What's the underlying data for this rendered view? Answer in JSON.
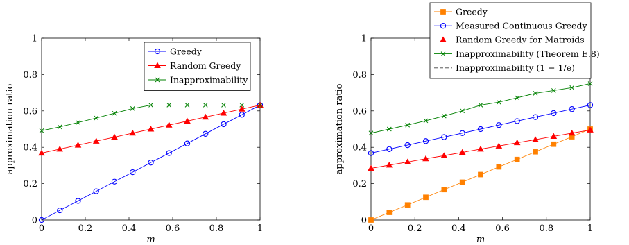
{
  "chart_data": [
    {
      "type": "line",
      "xlabel": "m",
      "ylabel": "approximation ratio",
      "xlim": [
        0,
        1
      ],
      "ylim": [
        0,
        1
      ],
      "xticks": [
        "0",
        "0.2",
        "0.4",
        "0.6",
        "0.8",
        "1"
      ],
      "yticks": [
        "0",
        "0.2",
        "0.4",
        "0.6",
        "0.8",
        "1"
      ],
      "grid": false,
      "legend_position": "top-right",
      "series": [
        {
          "name": "Greedy",
          "color": "#0000ff",
          "marker": "circle",
          "x": [
            0,
            0.0833,
            0.1667,
            0.25,
            0.3333,
            0.4167,
            0.5,
            0.5833,
            0.6667,
            0.75,
            0.8333,
            0.9167,
            1
          ],
          "y": [
            0,
            0.053,
            0.105,
            0.158,
            0.211,
            0.263,
            0.316,
            0.368,
            0.421,
            0.474,
            0.527,
            0.579,
            0.632
          ]
        },
        {
          "name": "Random Greedy",
          "color": "#ff0000",
          "marker": "triangle",
          "x": [
            0,
            0.0833,
            0.1667,
            0.25,
            0.3333,
            0.4167,
            0.5,
            0.5833,
            0.6667,
            0.75,
            0.8333,
            0.9167,
            1
          ],
          "y": [
            0.368,
            0.39,
            0.412,
            0.434,
            0.456,
            0.478,
            0.5,
            0.522,
            0.544,
            0.566,
            0.588,
            0.61,
            0.632
          ]
        },
        {
          "name": "Inapproximability",
          "color": "#008000",
          "marker": "cross",
          "x": [
            0,
            0.0833,
            0.1667,
            0.25,
            0.3333,
            0.4167,
            0.5,
            0.5833,
            0.6667,
            0.75,
            0.8333,
            0.9167,
            1
          ],
          "y": [
            0.491,
            0.512,
            0.536,
            0.561,
            0.587,
            0.613,
            0.632,
            0.632,
            0.632,
            0.632,
            0.632,
            0.632,
            0.632
          ]
        }
      ]
    },
    {
      "type": "line",
      "xlabel": "m",
      "ylabel": "approximation ratio",
      "xlim": [
        0,
        1
      ],
      "ylim": [
        0,
        1
      ],
      "xticks": [
        "0",
        "0.2",
        "0.4",
        "0.6",
        "0.8",
        "1"
      ],
      "yticks": [
        "0",
        "0.2",
        "0.4",
        "0.6",
        "0.8",
        "1"
      ],
      "grid": false,
      "legend_position": "top-right",
      "series": [
        {
          "name": "Greedy",
          "color": "#ff8000",
          "marker": "square",
          "x": [
            0,
            0.0833,
            0.1667,
            0.25,
            0.3333,
            0.4167,
            0.5,
            0.5833,
            0.6667,
            0.75,
            0.8333,
            0.9167,
            1
          ],
          "y": [
            0,
            0.042,
            0.083,
            0.125,
            0.167,
            0.208,
            0.25,
            0.292,
            0.333,
            0.375,
            0.417,
            0.458,
            0.5
          ]
        },
        {
          "name": "Measured Continuous Greedy",
          "color": "#0000ff",
          "marker": "circle",
          "x": [
            0,
            0.0833,
            0.1667,
            0.25,
            0.3333,
            0.4167,
            0.5,
            0.5833,
            0.6667,
            0.75,
            0.8333,
            0.9167,
            1
          ],
          "y": [
            0.368,
            0.39,
            0.412,
            0.434,
            0.456,
            0.478,
            0.5,
            0.522,
            0.544,
            0.566,
            0.588,
            0.61,
            0.632
          ]
        },
        {
          "name": "Random Greedy for Matroids",
          "color": "#ff0000",
          "marker": "triangle",
          "x": [
            0,
            0.0833,
            0.1667,
            0.25,
            0.3333,
            0.4167,
            0.5,
            0.5833,
            0.6667,
            0.75,
            0.8333,
            0.9167,
            1
          ],
          "y": [
            0.284,
            0.302,
            0.319,
            0.337,
            0.354,
            0.372,
            0.39,
            0.407,
            0.425,
            0.442,
            0.46,
            0.478,
            0.495
          ]
        },
        {
          "name": "Inapproximability (Theorem E.8)",
          "color": "#008000",
          "marker": "cross",
          "x": [
            0,
            0.0833,
            0.1667,
            0.25,
            0.3333,
            0.4167,
            0.5,
            0.5833,
            0.6667,
            0.75,
            0.8333,
            0.9167,
            1
          ],
          "y": [
            0.478,
            0.5,
            0.522,
            0.546,
            0.572,
            0.6,
            0.632,
            0.648,
            0.672,
            0.697,
            0.712,
            0.728,
            0.75
          ]
        },
        {
          "name": "Inapproximability (1 − 1/e)",
          "color": "#404040",
          "style": "dashed",
          "x": [
            0,
            1
          ],
          "y": [
            0.632,
            0.632
          ]
        }
      ]
    }
  ]
}
